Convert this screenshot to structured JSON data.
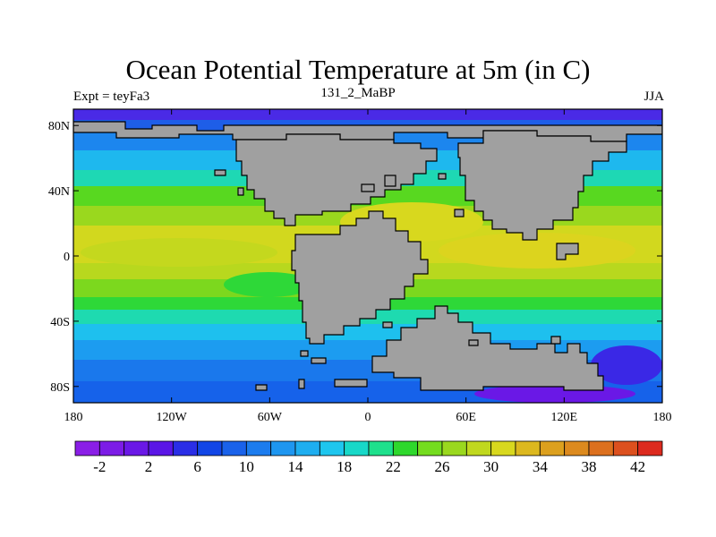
{
  "header": {
    "title": "Ocean Potential Temperature at 5m (in C)",
    "left_subtitle": "Expt = teyFa3",
    "center_subtitle": "131_2_MaBP",
    "right_subtitle": "JJA"
  },
  "axes": {
    "lat_ticks": [
      {
        "value": 80,
        "label": "80N"
      },
      {
        "value": 40,
        "label": "40N"
      },
      {
        "value": 0,
        "label": "0"
      },
      {
        "value": -40,
        "label": "40S"
      },
      {
        "value": -80,
        "label": "80S"
      }
    ],
    "lon_ticks": [
      {
        "value": -180,
        "label": "180"
      },
      {
        "value": -120,
        "label": "120W"
      },
      {
        "value": -60,
        "label": "60W"
      },
      {
        "value": 0,
        "label": "0"
      },
      {
        "value": 60,
        "label": "60E"
      },
      {
        "value": 120,
        "label": "120E"
      },
      {
        "value": 180,
        "label": "180"
      }
    ],
    "lat_range": [
      -90,
      90
    ],
    "lon_range": [
      -180,
      180
    ]
  },
  "colorbar": {
    "min": -4,
    "max": 44,
    "step": 2,
    "labels": [
      "-2",
      "2",
      "6",
      "10",
      "14",
      "18",
      "22",
      "26",
      "30",
      "34",
      "38",
      "42"
    ],
    "colors": [
      "#8a1ee6",
      "#7c1ce6",
      "#6a18e6",
      "#5a16e6",
      "#2a2ee6",
      "#1246e6",
      "#1a62ea",
      "#1c7cee",
      "#1e96f0",
      "#1eaef0",
      "#1ec6ee",
      "#18d8c8",
      "#1ee08c",
      "#2ed82c",
      "#74dc1e",
      "#9ad81e",
      "#c0d81e",
      "#d8d81e",
      "#dcb81e",
      "#dca01e",
      "#dc8a1e",
      "#dc701e",
      "#dc501e",
      "#dc2a1e"
    ]
  },
  "colors": {
    "land": "#a0a0a0",
    "coast": "#000000"
  }
}
